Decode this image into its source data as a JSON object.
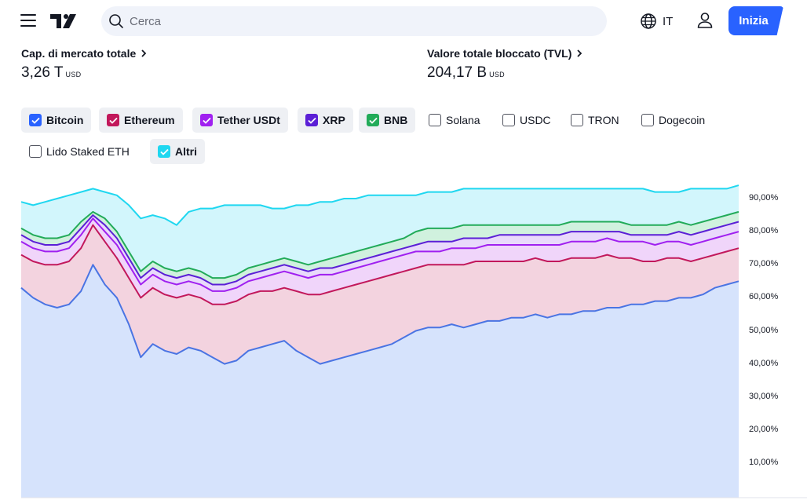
{
  "header": {
    "search_placeholder": "Cerca",
    "language": "IT",
    "cta_label": "Inizia",
    "icons": [
      "menu-icon",
      "tradingview-logo",
      "search-icon",
      "globe-icon",
      "user-icon"
    ]
  },
  "stats": {
    "market_cap": {
      "label": "Cap. di mercato totale",
      "value": "3,26 T",
      "unit": "USD"
    },
    "tvl": {
      "label": "Valore totale bloccato (TVL)",
      "value": "204,17 B",
      "unit": "USD"
    }
  },
  "filters": [
    {
      "label": "Bitcoin",
      "checked": true,
      "color": "#2962ff"
    },
    {
      "label": "Ethereum",
      "checked": true,
      "color": "#c2185b"
    },
    {
      "label": "Tether USDt",
      "checked": true,
      "color": "#a020f0"
    },
    {
      "label": "XRP",
      "checked": true,
      "color": "#5b1fd6"
    },
    {
      "label": "BNB",
      "checked": true,
      "color": "#22ab59"
    },
    {
      "label": "Solana",
      "checked": false
    },
    {
      "label": "USDC",
      "checked": false
    },
    {
      "label": "TRON",
      "checked": false
    },
    {
      "label": "Dogecoin",
      "checked": false
    },
    {
      "label": "Lido Staked ETH",
      "checked": false
    },
    {
      "label": "Altri",
      "checked": true,
      "color": "#1fd7f0"
    }
  ],
  "chart_data": {
    "type": "area",
    "stacked": true,
    "ylim": [
      0,
      100
    ],
    "y_ticks": [
      "10,00%",
      "20,00%",
      "30,00%",
      "40,00%",
      "50,00%",
      "60,00%",
      "70,00%",
      "80,00%",
      "90,00%"
    ],
    "grid": false,
    "series": [
      {
        "name": "Bitcoin",
        "line": "#4a74e3",
        "fill": "#d6e3fc",
        "values": [
          63,
          60,
          58,
          57,
          58,
          62,
          70,
          64,
          60,
          52,
          42,
          46,
          44,
          43,
          45,
          44,
          42,
          40,
          41,
          44,
          45,
          46,
          47,
          44,
          42,
          40,
          41,
          42,
          43,
          44,
          45,
          46,
          48,
          50,
          51,
          51,
          52,
          51,
          52,
          53,
          53,
          54,
          54,
          55,
          54,
          55,
          55,
          56,
          56,
          57,
          57,
          58,
          58,
          59,
          59,
          60,
          60,
          61,
          63,
          64,
          65
        ]
      },
      {
        "name": "Ethereum",
        "line": "#c2185b",
        "fill": "#f3d3df",
        "values": [
          73,
          71,
          70,
          70,
          71,
          75,
          82,
          77,
          72,
          66,
          60,
          63,
          61,
          60,
          61,
          60,
          58,
          58,
          59,
          61,
          62,
          62,
          63,
          62,
          61,
          61,
          62,
          63,
          64,
          65,
          66,
          67,
          68,
          69,
          70,
          70,
          70,
          70,
          71,
          71,
          71,
          71,
          71,
          72,
          71,
          71,
          72,
          72,
          72,
          73,
          72,
          72,
          71,
          71,
          72,
          72,
          71,
          72,
          73,
          74,
          75
        ]
      },
      {
        "name": "Tether USDt",
        "line": "#a020f0",
        "fill": "#f0d5fa",
        "values": [
          77,
          75,
          74,
          74,
          75,
          79,
          84,
          80,
          76,
          70,
          64,
          67,
          65,
          64,
          65,
          64,
          62,
          62,
          63,
          65,
          66,
          67,
          68,
          67,
          66,
          67,
          67,
          68,
          69,
          70,
          71,
          72,
          73,
          74,
          74,
          74,
          75,
          75,
          75,
          76,
          76,
          76,
          76,
          76,
          76,
          76,
          77,
          77,
          77,
          78,
          77,
          77,
          77,
          76,
          77,
          77,
          76,
          77,
          78,
          79,
          80
        ]
      },
      {
        "name": "XRP",
        "line": "#5b1fd6",
        "fill": "#e9d9fb",
        "values": [
          79,
          77,
          76,
          76,
          77,
          81,
          85,
          82,
          78,
          72,
          66,
          69,
          67,
          66,
          67,
          66,
          64,
          64,
          65,
          67,
          68,
          69,
          70,
          69,
          68,
          69,
          69,
          70,
          71,
          72,
          73,
          74,
          75,
          76,
          77,
          77,
          77,
          78,
          78,
          78,
          79,
          79,
          79,
          79,
          79,
          79,
          80,
          80,
          80,
          80,
          80,
          79,
          79,
          79,
          79,
          80,
          79,
          80,
          81,
          82,
          83
        ]
      },
      {
        "name": "BNB",
        "line": "#22ab59",
        "fill": "#d0f1de",
        "values": [
          81,
          79,
          78,
          78,
          79,
          83,
          86,
          84,
          80,
          74,
          68,
          71,
          69,
          68,
          69,
          68,
          66,
          66,
          67,
          69,
          70,
          71,
          72,
          71,
          70,
          71,
          72,
          73,
          74,
          75,
          76,
          77,
          78,
          80,
          81,
          81,
          81,
          82,
          82,
          82,
          82,
          82,
          82,
          82,
          82,
          82,
          83,
          83,
          83,
          83,
          83,
          82,
          82,
          82,
          82,
          83,
          82,
          83,
          84,
          85,
          86
        ]
      },
      {
        "name": "Altri",
        "line": "#1fd7f0",
        "fill": "#d2f6fc",
        "values": [
          89,
          88,
          89,
          90,
          91,
          92,
          93,
          92,
          91,
          88,
          84,
          85,
          84,
          82,
          86,
          87,
          87,
          88,
          88,
          88,
          88,
          87,
          87,
          88,
          88,
          89,
          89,
          90,
          90,
          91,
          91,
          91,
          91,
          91,
          92,
          92,
          92,
          93,
          93,
          93,
          93,
          93,
          93,
          93,
          93,
          93,
          93,
          93,
          93,
          93,
          93,
          93,
          93,
          92,
          92,
          92,
          93,
          93,
          93,
          93,
          94
        ]
      }
    ]
  }
}
